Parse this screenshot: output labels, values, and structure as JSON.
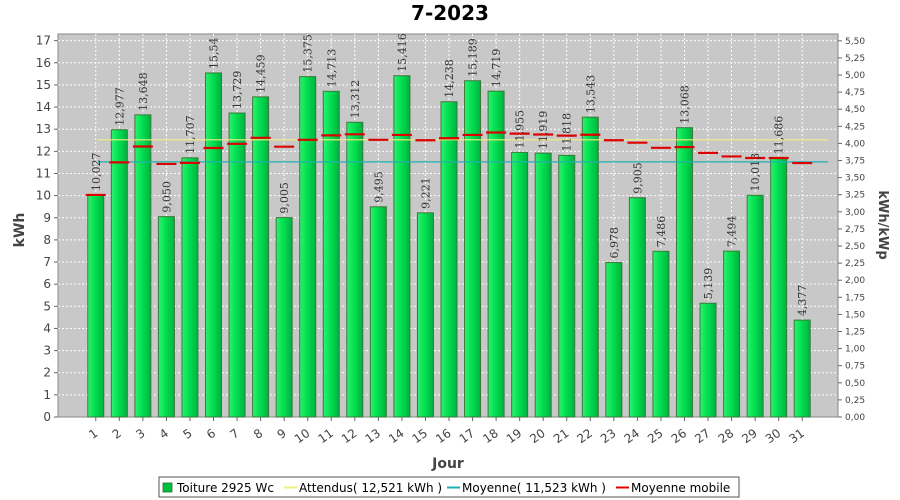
{
  "chart_data": {
    "type": "bar",
    "title": "7-2023",
    "xlabel": "Jour",
    "ylabel": "kWh",
    "y2label": "kWh/kWp",
    "ylim": [
      0,
      17.3
    ],
    "y2lim": [
      0,
      5.6
    ],
    "categories": [
      "1",
      "2",
      "3",
      "4",
      "5",
      "6",
      "7",
      "8",
      "9",
      "10",
      "11",
      "12",
      "13",
      "14",
      "15",
      "16",
      "17",
      "18",
      "19",
      "20",
      "21",
      "22",
      "23",
      "24",
      "25",
      "26",
      "27",
      "28",
      "29",
      "30",
      "31"
    ],
    "series": [
      {
        "name": "Toiture 2925 Wc",
        "type": "bar",
        "color": "#00e050",
        "values": [
          10.027,
          12.977,
          13.648,
          9.05,
          11.707,
          15.54,
          13.729,
          14.459,
          9.005,
          15.375,
          14.713,
          13.312,
          9.495,
          15.416,
          9.221,
          14.238,
          15.189,
          14.719,
          11.955,
          11.919,
          11.818,
          13.543,
          6.978,
          9.905,
          7.486,
          13.068,
          5.139,
          7.494,
          10.013,
          11.686,
          4.377
        ],
        "labels": [
          "10,027",
          "12,977",
          "13,648",
          "9,050",
          "11,707",
          "15,54",
          "13,729",
          "14,459",
          "9,005",
          "15,375",
          "14,713",
          "13,312",
          "9,495",
          "15,416",
          "9,221",
          "14,238",
          "15,189",
          "14,719",
          "11,955",
          "11,919",
          "11,818",
          "13,543",
          "6,978",
          "9,905",
          "7,486",
          "13,068",
          "5,139",
          "7,494",
          "10,013",
          "11,686",
          "4,377"
        ]
      },
      {
        "name": "Moyenne mobile",
        "type": "step",
        "color": "#dd0000",
        "values": [
          10.03,
          11.5,
          12.22,
          11.43,
          11.48,
          12.15,
          12.34,
          12.61,
          12.21,
          12.52,
          12.72,
          12.77,
          12.52,
          12.74,
          12.5,
          12.59,
          12.74,
          12.85,
          12.8,
          12.76,
          12.71,
          12.75,
          12.5,
          12.39,
          12.16,
          12.19,
          11.93,
          11.77,
          11.7,
          11.7,
          11.47
        ]
      }
    ],
    "reference_lines": [
      {
        "name": "Attendus",
        "value": 12.521,
        "color": "#f0f080"
      },
      {
        "name": "Moyenne",
        "value": 11.523,
        "color": "#20b0b0"
      }
    ],
    "yticks": [
      0,
      1,
      2,
      3,
      4,
      5,
      6,
      7,
      8,
      9,
      10,
      11,
      12,
      13,
      14,
      15,
      16,
      17
    ],
    "y2ticks": [
      "0,00",
      "0,25",
      "0,50",
      "0,75",
      "1,00",
      "1,25",
      "1,50",
      "1,75",
      "2,00",
      "2,25",
      "2,50",
      "2,75",
      "3,00",
      "3,25",
      "3,50",
      "3,75",
      "4,00",
      "4,25",
      "4,50",
      "4,75",
      "5,00",
      "5,25",
      "5,50"
    ],
    "grid": true,
    "legend_position": "bottom"
  },
  "legend": [
    {
      "label": "Toiture 2925 Wc",
      "color": "#00c040",
      "kind": "box"
    },
    {
      "label": "Attendus( 12,521 kWh )",
      "color": "#f0f080",
      "kind": "line"
    },
    {
      "label": "Moyenne( 11,523 kWh )",
      "color": "#20b0b0",
      "kind": "line"
    },
    {
      "label": "Moyenne mobile",
      "color": "#dd0000",
      "kind": "line"
    }
  ]
}
